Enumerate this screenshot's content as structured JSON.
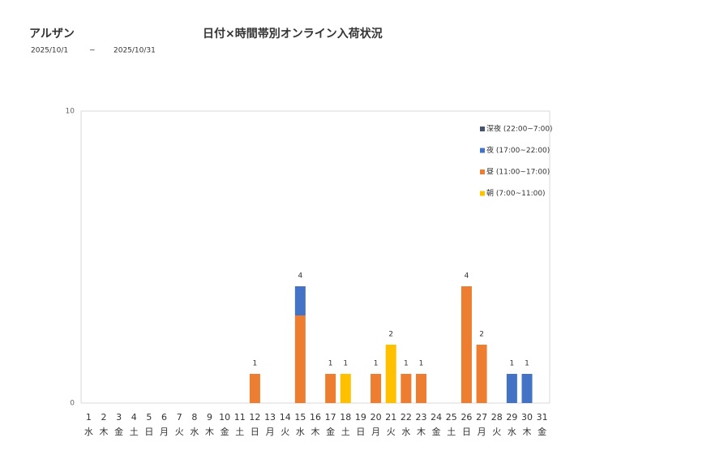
{
  "chart_data": {
    "type": "stacked_bar",
    "title": "日付×時間帯別オンライン入荷状況",
    "store": "アルザン",
    "period_start": "2025/10/1",
    "period_sep": "~",
    "period_end": "2025/10/31",
    "categories": [
      "1",
      "2",
      "3",
      "4",
      "5",
      "6",
      "7",
      "8",
      "9",
      "10",
      "11",
      "12",
      "13",
      "14",
      "15",
      "16",
      "17",
      "18",
      "19",
      "20",
      "21",
      "22",
      "23",
      "24",
      "25",
      "26",
      "27",
      "28",
      "29",
      "30",
      "31"
    ],
    "weekdays": [
      "水",
      "木",
      "金",
      "土",
      "日",
      "月",
      "火",
      "水",
      "木",
      "金",
      "土",
      "日",
      "月",
      "火",
      "水",
      "木",
      "金",
      "土",
      "日",
      "月",
      "火",
      "水",
      "木",
      "金",
      "土",
      "日",
      "月",
      "火",
      "水",
      "木",
      "金"
    ],
    "series": [
      {
        "name": "深夜 (22:00~7:00)",
        "color": "#44546a",
        "values": [
          0,
          0,
          0,
          0,
          0,
          0,
          0,
          0,
          0,
          0,
          0,
          0,
          0,
          0,
          0,
          0,
          0,
          0,
          0,
          0,
          0,
          0,
          0,
          0,
          0,
          0,
          0,
          0,
          0,
          0,
          0
        ]
      },
      {
        "name": "夜 (17:00~22:00)",
        "color": "#4472c4",
        "values": [
          0,
          0,
          0,
          0,
          0,
          0,
          0,
          0,
          0,
          0,
          0,
          0,
          0,
          0,
          1,
          0,
          0,
          0,
          0,
          0,
          0,
          0,
          0,
          0,
          0,
          0,
          0,
          0,
          1,
          1,
          0
        ]
      },
      {
        "name": "昼 (11:00~17:00)",
        "color": "#ed7d31",
        "values": [
          0,
          0,
          0,
          0,
          0,
          0,
          0,
          0,
          0,
          0,
          0,
          1,
          0,
          0,
          3,
          0,
          1,
          0,
          0,
          1,
          0,
          1,
          1,
          0,
          0,
          4,
          2,
          0,
          0,
          0,
          0
        ]
      },
      {
        "name": "朝 (7:00~11:00)",
        "color": "#ffc000",
        "values": [
          0,
          0,
          0,
          0,
          0,
          0,
          0,
          0,
          0,
          0,
          0,
          0,
          0,
          0,
          0,
          0,
          0,
          1,
          0,
          0,
          2,
          0,
          0,
          0,
          0,
          0,
          0,
          0,
          0,
          0,
          0
        ]
      }
    ],
    "totals": [
      null,
      null,
      null,
      null,
      null,
      null,
      null,
      null,
      null,
      null,
      null,
      1,
      null,
      null,
      4,
      null,
      1,
      1,
      null,
      1,
      2,
      1,
      1,
      null,
      null,
      4,
      2,
      null,
      1,
      1,
      null
    ],
    "ylim": [
      0,
      10
    ],
    "yticks": [
      0,
      10
    ],
    "grid": false
  }
}
